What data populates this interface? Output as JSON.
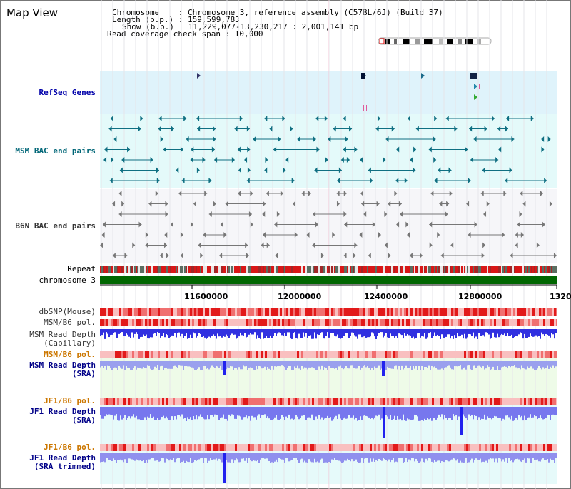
{
  "app": {
    "title": "Map View"
  },
  "info": {
    "chromosome_line": "Chromosome    : Chromosome 3, reference assembly (C57BL/6J) (Build 37)",
    "length_line": "Length (b.p.) : 159,599,783",
    "show_line": "Show (b.p.) : 11,229,077-13,230,217 : 2,001,141 bp",
    "coverage_line": "Read coverage check span : 10,000"
  },
  "tracks": {
    "refseq": "RefSeq Genes",
    "msm_bac": "MSM BAC end pairs",
    "b6n_bac": "B6N BAC end pairs",
    "repeat": "Repeat",
    "chromosome": "chromosome 3",
    "dbsnp": "dbSNP(Mouse)",
    "msm_b6_pol_1": "MSM/B6 pol.",
    "msm_read_depth_cap": "MSM Read Depth\n(Capillary)",
    "msm_b6_pol_2": "MSM/B6 pol.",
    "msm_read_depth_sra": "MSM Read Depth\n(SRA)",
    "jf1_b6_pol_1": "JF1/B6 pol.",
    "jf1_read_depth_sra": "JF1 Read Depth\n(SRA)",
    "jf1_b6_pol_2": "JF1/B6 pol.",
    "jf1_read_depth_trim": "JF1 Read Depth\n(SRA trimmed)"
  },
  "axis": {
    "ticks": [
      "11600000",
      "12000000",
      "12400000",
      "12800000",
      "1320"
    ]
  },
  "colors": {
    "refseq_bg": "#dff3fb",
    "msm_bg": "#e4fafa",
    "b6n_bg": "#f5f5f8",
    "chromosome_bar": "#006600",
    "depth_blue": "#3333ee",
    "depth_light": "#8888ff",
    "pol_red": "#ee4444",
    "pol_pink": "#ffbbbb"
  }
}
